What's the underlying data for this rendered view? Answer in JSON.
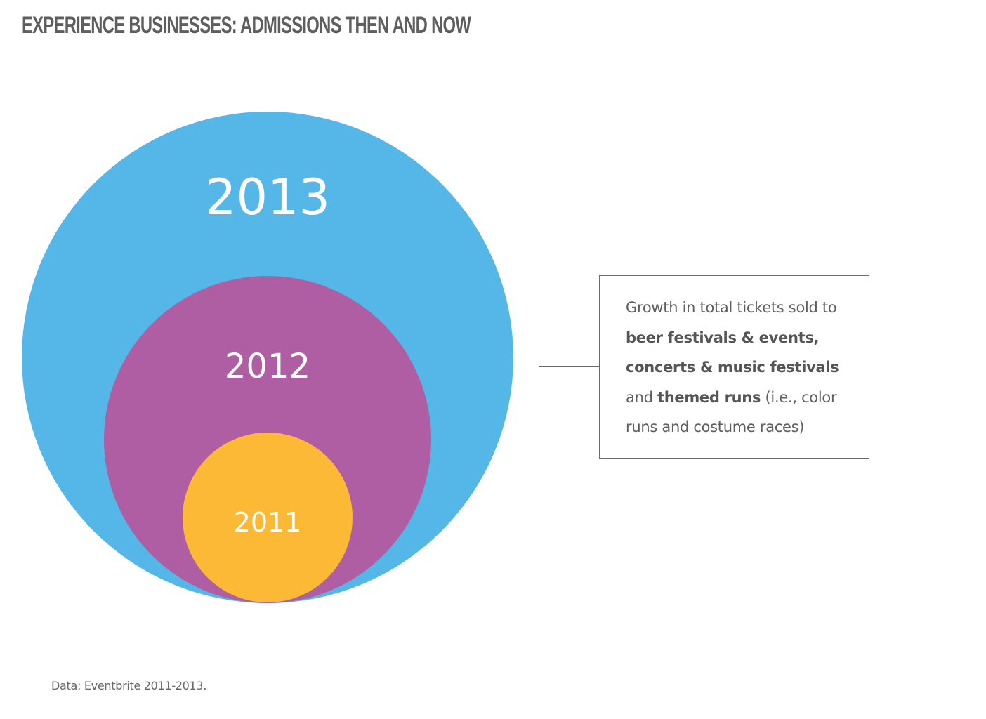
{
  "title": "EXPERIENCE BUSINESSES:  ADMISSIONS THEN AND NOW",
  "circles": [
    {
      "label": "2013",
      "color": "#55b7e8"
    },
    {
      "label": "2012",
      "color": "#b05ea3"
    },
    {
      "label": "2011",
      "color": "#fcb935"
    }
  ],
  "callout": {
    "line1": "Growth in total tickets  sold to",
    "line2_bold": "beer festivals & events,",
    "line3_bold": "concerts & music festivals",
    "line4_pre": "and ",
    "line4_bold": "themed runs",
    "line4_post": " (i.e., color",
    "line5": "runs and costume races)",
    "border_color": "#6a6a6a"
  },
  "source": "Data: Eventbrite 2011-2013."
}
